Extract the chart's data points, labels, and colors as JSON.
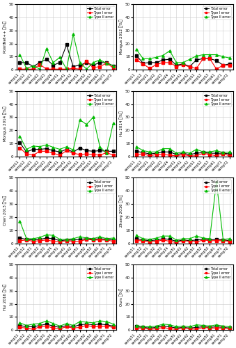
{
  "x_labels": [
    "samp11",
    "samp12",
    "samp21",
    "samp22",
    "samp23",
    "samp24",
    "samp31",
    "samp41",
    "samp42",
    "samp51",
    "samp52",
    "samp53",
    "samp61",
    "samp71",
    "samp72"
  ],
  "subplots": [
    {
      "ylabel": "PointNet++ （%）",
      "ylim": [
        0,
        50
      ],
      "yticks": [
        0,
        5,
        10,
        15,
        20,
        25,
        30,
        35,
        40,
        45,
        50
      ],
      "total": [
        5.5,
        5.5,
        2.5,
        5.5,
        8.0,
        3.5,
        5.5,
        19.0,
        2.5,
        3.5,
        5.5,
        3.5,
        5.5,
        5.5,
        3.0
      ],
      "type1": [
        0.5,
        0.5,
        0.5,
        4.0,
        0.5,
        0.5,
        0.5,
        0.5,
        1.0,
        0.5,
        6.5,
        1.5,
        2.5,
        5.0,
        1.5
      ],
      "type2": [
        11.5,
        1.0,
        3.0,
        0.5,
        16.0,
        5.5,
        9.5,
        0.5,
        27.0,
        5.5,
        0.5,
        5.5,
        7.5,
        5.0,
        3.0
      ]
    },
    {
      "ylabel": "Mongus 2012 （%）",
      "ylim": [
        0,
        50
      ],
      "yticks": [
        0,
        5,
        10,
        15,
        20,
        25,
        30,
        35,
        40,
        45,
        50
      ],
      "total": [
        11.0,
        5.0,
        5.5,
        5.5,
        7.5,
        8.0,
        3.5,
        4.5,
        2.5,
        7.5,
        8.5,
        8.5,
        7.0,
        3.5,
        4.5
      ],
      "type1": [
        7.5,
        4.5,
        1.0,
        4.0,
        5.5,
        5.5,
        2.5,
        4.0,
        2.0,
        1.0,
        8.5,
        8.5,
        0.5,
        3.5,
        3.5
      ],
      "type2": [
        15.5,
        8.5,
        8.5,
        9.5,
        11.0,
        14.5,
        5.5,
        5.5,
        8.0,
        10.5,
        11.5,
        11.5,
        11.5,
        10.0,
        9.0
      ]
    },
    {
      "ylabel": "Mongus 2014 （%）",
      "ylim": [
        0,
        50
      ],
      "yticks": [
        0,
        5,
        10,
        15,
        20,
        25,
        30,
        35,
        40,
        45,
        50
      ],
      "total": [
        10.5,
        3.5,
        5.5,
        5.5,
        6.0,
        4.5,
        3.5,
        5.5,
        3.5,
        6.5,
        4.5,
        4.0,
        4.5,
        4.0,
        4.0
      ],
      "type1": [
        6.5,
        2.0,
        1.0,
        4.0,
        4.0,
        2.5,
        1.0,
        4.5,
        2.5,
        1.5,
        2.0,
        1.5,
        1.0,
        3.0,
        1.0
      ],
      "type2": [
        15.5,
        5.5,
        8.0,
        7.5,
        9.0,
        7.0,
        5.5,
        7.5,
        5.0,
        28.0,
        24.5,
        30.0,
        7.5,
        2.5,
        25.5
      ]
    },
    {
      "ylabel": "Hu 2014 （%）",
      "ylim": [
        0,
        50
      ],
      "yticks": [
        0,
        5,
        10,
        15,
        20,
        25,
        30,
        35,
        40,
        45,
        50
      ],
      "total": [
        4.0,
        3.0,
        2.0,
        2.5,
        3.5,
        3.5,
        1.5,
        2.5,
        1.5,
        2.5,
        3.0,
        2.5,
        2.5,
        2.5,
        2.0
      ],
      "type1": [
        1.5,
        2.0,
        0.5,
        1.5,
        1.5,
        1.0,
        0.5,
        1.5,
        0.5,
        0.5,
        2.5,
        1.5,
        0.5,
        2.0,
        0.5
      ],
      "type2": [
        7.5,
        4.5,
        3.5,
        3.5,
        6.0,
        6.0,
        2.5,
        3.5,
        2.5,
        5.5,
        3.5,
        3.5,
        4.5,
        3.0,
        3.5
      ]
    },
    {
      "ylabel": "Chen 2013 （%）",
      "ylim": [
        0,
        50
      ],
      "yticks": [
        0,
        5,
        10,
        15,
        20,
        25,
        30,
        35,
        40,
        45,
        50
      ],
      "total": [
        4.0,
        3.0,
        2.5,
        3.0,
        4.0,
        3.5,
        2.0,
        2.5,
        2.5,
        3.0,
        3.5,
        3.0,
        3.5,
        3.0,
        2.5
      ],
      "type1": [
        2.0,
        2.5,
        1.5,
        2.0,
        2.5,
        1.5,
        1.0,
        2.0,
        1.5,
        1.5,
        3.0,
        2.5,
        2.5,
        2.5,
        1.5
      ],
      "type2": [
        17.0,
        3.5,
        3.5,
        4.5,
        6.5,
        6.0,
        3.0,
        3.0,
        3.5,
        5.0,
        4.0,
        3.5,
        5.0,
        3.5,
        4.0
      ]
    },
    {
      "ylabel": "Zhang 2016 （%）",
      "ylim": [
        0,
        50
      ],
      "yticks": [
        0,
        5,
        10,
        15,
        20,
        25,
        30,
        35,
        40,
        45,
        50
      ],
      "total": [
        3.5,
        2.5,
        2.0,
        2.5,
        3.5,
        3.0,
        1.5,
        2.5,
        2.0,
        2.5,
        3.0,
        2.5,
        3.0,
        2.5,
        2.0
      ],
      "type1": [
        2.0,
        2.0,
        1.0,
        1.5,
        2.5,
        1.5,
        0.5,
        2.0,
        1.5,
        1.0,
        2.5,
        2.0,
        2.0,
        2.0,
        1.5
      ],
      "type2": [
        6.0,
        3.5,
        3.0,
        4.0,
        5.5,
        5.5,
        2.5,
        3.5,
        3.5,
        5.5,
        4.0,
        3.5,
        47.0,
        3.0,
        3.5
      ]
    },
    {
      "ylabel": "Hui 2016 （%）",
      "ylim": [
        0,
        50
      ],
      "yticks": [
        0,
        5,
        10,
        15,
        20,
        25,
        30,
        35,
        40,
        45,
        50
      ],
      "total": [
        3.5,
        2.5,
        2.5,
        3.5,
        4.5,
        3.0,
        2.0,
        3.5,
        2.5,
        4.0,
        4.5,
        4.0,
        4.5,
        4.0,
        3.0
      ],
      "type1": [
        2.0,
        1.5,
        0.5,
        2.5,
        3.0,
        1.5,
        1.0,
        2.5,
        1.5,
        2.0,
        3.5,
        2.5,
        2.5,
        3.0,
        2.0
      ],
      "type2": [
        5.5,
        3.5,
        4.5,
        5.0,
        7.0,
        5.0,
        3.0,
        5.0,
        3.5,
        6.5,
        6.0,
        5.5,
        7.0,
        6.5,
        4.5
      ]
    },
    {
      "ylabel": "Ours （%）",
      "ylim": [
        0,
        50
      ],
      "yticks": [
        0,
        5,
        10,
        15,
        20,
        25,
        30,
        35,
        40,
        45,
        50
      ],
      "total": [
        2.5,
        2.0,
        1.5,
        2.0,
        3.0,
        2.5,
        1.5,
        2.0,
        1.5,
        2.0,
        2.5,
        2.0,
        2.5,
        2.0,
        1.5
      ],
      "type1": [
        1.5,
        1.5,
        0.5,
        1.0,
        2.0,
        1.0,
        0.5,
        1.5,
        1.0,
        0.5,
        2.0,
        1.5,
        1.5,
        1.5,
        1.0
      ],
      "type2": [
        3.5,
        2.5,
        2.5,
        3.0,
        4.5,
        4.0,
        2.5,
        3.0,
        2.5,
        4.0,
        3.5,
        3.0,
        4.0,
        3.0,
        2.5
      ]
    }
  ],
  "color_total": "#000000",
  "color_type1": "#ff0000",
  "color_type2": "#00bb00",
  "marker_total": "s",
  "marker_type1": "s",
  "marker_type2": "^",
  "legend_labels": [
    "Total error",
    "Type I error",
    "Type II error"
  ],
  "background_color": "#ffffff",
  "grid_color": "#cccccc"
}
